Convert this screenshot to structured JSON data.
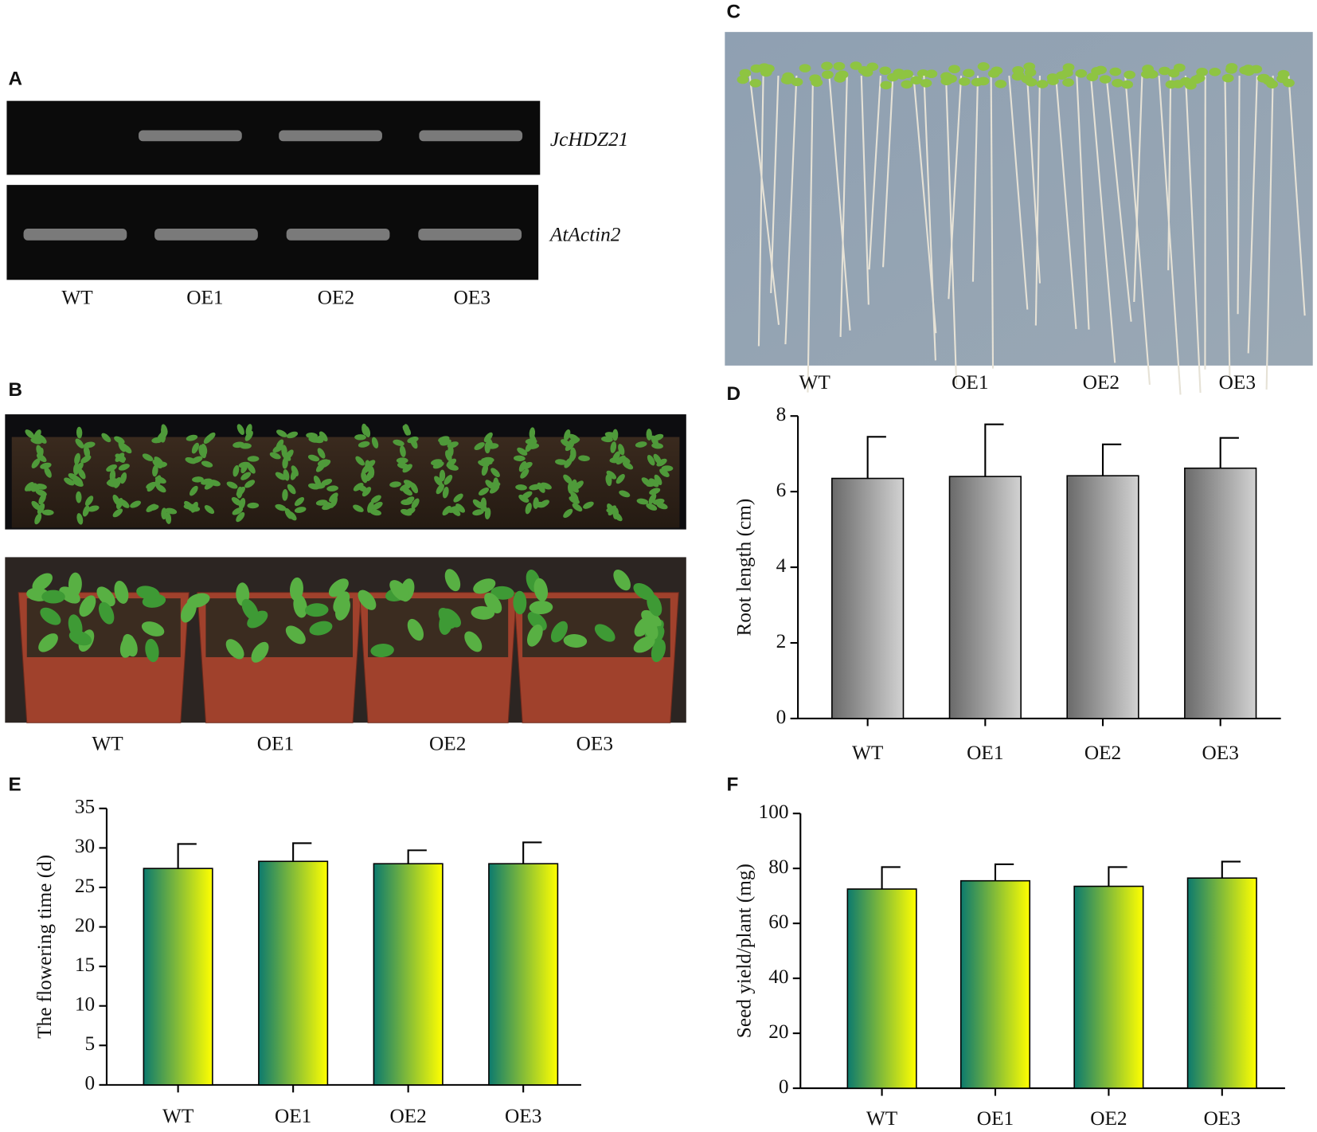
{
  "panels": {
    "A": {
      "label": "A",
      "genes": [
        "JcHDZ21",
        "AtActin2"
      ],
      "lanes": [
        "WT",
        "OE1",
        "OE2",
        "OE3"
      ]
    },
    "B": {
      "label": "B",
      "lanes": [
        "WT",
        "OE1",
        "OE2",
        "OE3"
      ]
    },
    "C": {
      "label": "C",
      "lanes": [
        "WT",
        "OE1",
        "OE2",
        "OE3"
      ]
    }
  },
  "chart_data": [
    {
      "type": "bar",
      "panel": "D",
      "ylabel": "Root length (cm)",
      "categories": [
        "WT",
        "OE1",
        "OE2",
        "OE3"
      ],
      "values": [
        6.35,
        6.4,
        6.42,
        6.62
      ],
      "errors": [
        1.1,
        1.38,
        0.83,
        0.8
      ],
      "color": [
        "#6a6a6a",
        "#d2d2d2"
      ],
      "ylim": [
        0,
        8
      ],
      "yticks": [
        0,
        2,
        4,
        6,
        8
      ]
    },
    {
      "type": "bar",
      "panel": "E",
      "ylabel": "The flowering time (d)",
      "categories": [
        "WT",
        "OE1",
        "OE2",
        "OE3"
      ],
      "values": [
        27.4,
        28.3,
        28.0,
        28.0
      ],
      "errors": [
        3.1,
        2.3,
        1.7,
        2.7
      ],
      "color": [
        "#0c7a6e",
        "#ffff00"
      ],
      "ylim": [
        0,
        35
      ],
      "yticks": [
        0,
        5,
        10,
        15,
        20,
        25,
        30,
        35
      ]
    },
    {
      "type": "bar",
      "panel": "F",
      "ylabel": "Seed yield/plant (mg)",
      "categories": [
        "WT",
        "OE1",
        "OE2",
        "OE3"
      ],
      "values": [
        72.5,
        75.5,
        73.5,
        76.5
      ],
      "errors": [
        8,
        6,
        7,
        6
      ],
      "color": [
        "#0c7a6e",
        "#ffff00"
      ],
      "ylim": [
        0,
        100
      ],
      "yticks": [
        0,
        20,
        40,
        60,
        80,
        100
      ]
    }
  ]
}
